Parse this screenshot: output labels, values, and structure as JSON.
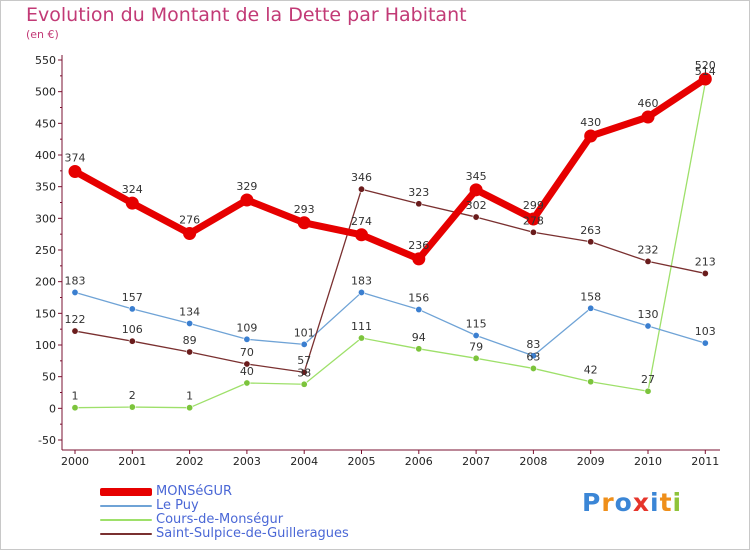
{
  "title": "Evolution du Montant de la Dette par Habitant",
  "subtitle": "(en €)",
  "logo": {
    "text": "Proxiti",
    "letters": [
      {
        "ch": "P",
        "color": "#3b86d6"
      },
      {
        "ch": "r",
        "color": "#ef8f1a"
      },
      {
        "ch": "o",
        "color": "#3b86d6"
      },
      {
        "ch": "x",
        "color": "#e6352b"
      },
      {
        "ch": "i",
        "color": "#3b86d6"
      },
      {
        "ch": "t",
        "color": "#ef8f1a"
      },
      {
        "ch": "i",
        "color": "#8fc43a"
      }
    ]
  },
  "chart_data": {
    "type": "line",
    "x": [
      "2000",
      "2001",
      "2002",
      "2003",
      "2004",
      "2005",
      "2006",
      "2007",
      "2008",
      "2009",
      "2010",
      "2011"
    ],
    "ylim": [
      -50,
      550
    ],
    "yticks": [
      "-50",
      "0",
      "50",
      "100",
      "150",
      "200",
      "250",
      "300",
      "350",
      "400",
      "450",
      "500",
      "550"
    ],
    "grid": false,
    "legend_position": "bottom-left",
    "series": [
      {
        "name": "MONSéGUR",
        "color": "#e60000",
        "marker": "#e60000",
        "values": [
          374,
          324,
          276,
          329,
          293,
          274,
          236,
          345,
          299,
          430,
          460,
          520
        ],
        "labels": [
          "374",
          "324",
          "276",
          "329",
          "293",
          "274",
          "236",
          "345",
          "299",
          "430",
          "460",
          "520"
        ]
      },
      {
        "name": "Le Puy",
        "color": "#6fa3d6",
        "marker": "#3b7fd0",
        "values": [
          183,
          157,
          134,
          109,
          101,
          183,
          156,
          115,
          83,
          158,
          130,
          103
        ],
        "labels": [
          "183",
          "157",
          "134",
          "109",
          "101",
          "183",
          "156",
          "115",
          "83",
          "158",
          "130",
          "103"
        ]
      },
      {
        "name": "Cours-de-Monségur",
        "color": "#9ee06a",
        "marker": "#7cc43c",
        "values": [
          1,
          2,
          1,
          40,
          38,
          111,
          94,
          79,
          63,
          42,
          27,
          514
        ],
        "labels": [
          "1",
          "2",
          "1",
          "40",
          "38",
          "111",
          "94",
          "79",
          "63",
          "42",
          "27",
          "514"
        ]
      },
      {
        "name": "Saint-Sulpice-de-Guilleragues",
        "color": "#7a3030",
        "marker": "#6a1c1c",
        "values": [
          122,
          106,
          89,
          70,
          57,
          346,
          323,
          302,
          278,
          263,
          232,
          213
        ],
        "labels": [
          "122",
          "106",
          "89",
          "70",
          "57",
          "346",
          "323",
          "302",
          "278",
          "263",
          "232",
          "213"
        ]
      }
    ]
  }
}
